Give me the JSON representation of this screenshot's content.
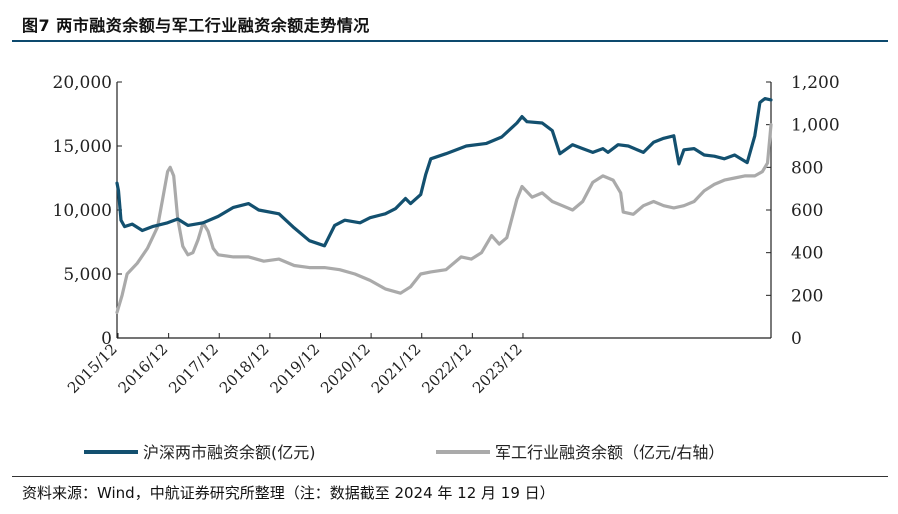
{
  "header": {
    "title": "图7  两市融资余额与军工行业融资余额走势情况"
  },
  "footer": {
    "source": "资料来源：Wind，中航证券研究所整理（注：数据截至 2024 年 12 月 19 日）"
  },
  "chart_data": {
    "type": "line",
    "title": "图7  两市融资余额与军工行业融资余额走势情况",
    "x_labels": [
      "2015/12",
      "2016/12",
      "2017/12",
      "2018/12",
      "2019/12",
      "2020/12",
      "2021/12",
      "2022/12",
      "2023/12"
    ],
    "y_left": {
      "ticks": [
        "0",
        "5,000",
        "10,000",
        "15,000",
        "20,000"
      ],
      "range": [
        0,
        20000
      ]
    },
    "y_right": {
      "ticks": [
        "0",
        "200",
        "400",
        "600",
        "800",
        "1,000",
        "1,200"
      ],
      "range": [
        0,
        1200
      ]
    },
    "colors": {
      "left_series": "#13506f",
      "right_series": "#aaaaaa"
    },
    "series": [
      {
        "name": "沪深两市融资余额(亿元)",
        "axis": "left",
        "points": [
          [
            0,
            12100
          ],
          [
            0.03,
            11500
          ],
          [
            0.08,
            9200
          ],
          [
            0.15,
            8700
          ],
          [
            0.3,
            8900
          ],
          [
            0.5,
            8400
          ],
          [
            0.7,
            8700
          ],
          [
            1.0,
            9000
          ],
          [
            1.2,
            9300
          ],
          [
            1.4,
            8800
          ],
          [
            1.7,
            9000
          ],
          [
            2.0,
            9500
          ],
          [
            2.3,
            10200
          ],
          [
            2.6,
            10500
          ],
          [
            2.8,
            10000
          ],
          [
            3.2,
            9700
          ],
          [
            3.5,
            8600
          ],
          [
            3.8,
            7600
          ],
          [
            4.1,
            7200
          ],
          [
            4.3,
            8800
          ],
          [
            4.5,
            9200
          ],
          [
            4.8,
            9000
          ],
          [
            5.0,
            9400
          ],
          [
            5.3,
            9700
          ],
          [
            5.5,
            10100
          ],
          [
            5.7,
            10900
          ],
          [
            5.8,
            10500
          ],
          [
            6.0,
            11200
          ],
          [
            6.1,
            12800
          ],
          [
            6.2,
            14000
          ],
          [
            6.5,
            14400
          ],
          [
            6.9,
            15000
          ],
          [
            7.3,
            15200
          ],
          [
            7.6,
            15700
          ],
          [
            7.9,
            16800
          ],
          [
            8.0,
            17300
          ],
          [
            8.1,
            16900
          ],
          [
            8.4,
            16800
          ],
          [
            8.6,
            16200
          ],
          [
            8.75,
            14400
          ],
          [
            9.0,
            15100
          ],
          [
            9.2,
            14800
          ],
          [
            9.4,
            14500
          ],
          [
            9.6,
            14800
          ],
          [
            9.7,
            14500
          ],
          [
            9.9,
            15100
          ],
          [
            10.1,
            15000
          ],
          [
            10.4,
            14500
          ],
          [
            10.6,
            15300
          ],
          [
            10.8,
            15600
          ],
          [
            11.0,
            15800
          ],
          [
            11.1,
            13600
          ],
          [
            11.2,
            14700
          ],
          [
            11.4,
            14800
          ],
          [
            11.6,
            14300
          ],
          [
            11.8,
            14200
          ],
          [
            12.0,
            14000
          ],
          [
            12.2,
            14300
          ],
          [
            12.45,
            13700
          ],
          [
            12.6,
            15800
          ],
          [
            12.7,
            18400
          ],
          [
            12.8,
            18700
          ],
          [
            12.92,
            18600
          ]
        ]
      },
      {
        "name": "军工行业融资余额（亿元/右轴）",
        "axis": "right",
        "points": [
          [
            0,
            120
          ],
          [
            0.1,
            200
          ],
          [
            0.2,
            300
          ],
          [
            0.4,
            350
          ],
          [
            0.6,
            420
          ],
          [
            0.8,
            520
          ],
          [
            0.9,
            650
          ],
          [
            1.0,
            780
          ],
          [
            1.05,
            800
          ],
          [
            1.12,
            760
          ],
          [
            1.2,
            560
          ],
          [
            1.3,
            430
          ],
          [
            1.4,
            390
          ],
          [
            1.5,
            400
          ],
          [
            1.6,
            460
          ],
          [
            1.7,
            540
          ],
          [
            1.8,
            500
          ],
          [
            1.9,
            420
          ],
          [
            2.0,
            390
          ],
          [
            2.3,
            380
          ],
          [
            2.6,
            380
          ],
          [
            2.9,
            360
          ],
          [
            3.2,
            370
          ],
          [
            3.5,
            340
          ],
          [
            3.8,
            330
          ],
          [
            4.1,
            330
          ],
          [
            4.4,
            320
          ],
          [
            4.7,
            300
          ],
          [
            5.0,
            270
          ],
          [
            5.3,
            230
          ],
          [
            5.6,
            210
          ],
          [
            5.8,
            240
          ],
          [
            6.0,
            300
          ],
          [
            6.2,
            310
          ],
          [
            6.5,
            320
          ],
          [
            6.8,
            380
          ],
          [
            7.0,
            370
          ],
          [
            7.2,
            400
          ],
          [
            7.4,
            480
          ],
          [
            7.55,
            440
          ],
          [
            7.7,
            470
          ],
          [
            7.9,
            650
          ],
          [
            8.0,
            710
          ],
          [
            8.2,
            660
          ],
          [
            8.4,
            680
          ],
          [
            8.6,
            640
          ],
          [
            8.8,
            620
          ],
          [
            9.0,
            600
          ],
          [
            9.2,
            640
          ],
          [
            9.4,
            730
          ],
          [
            9.6,
            760
          ],
          [
            9.8,
            740
          ],
          [
            9.95,
            680
          ],
          [
            10.0,
            590
          ],
          [
            10.2,
            580
          ],
          [
            10.4,
            620
          ],
          [
            10.6,
            640
          ],
          [
            10.8,
            620
          ],
          [
            11.0,
            610
          ],
          [
            11.2,
            620
          ],
          [
            11.4,
            640
          ],
          [
            11.6,
            690
          ],
          [
            11.8,
            720
          ],
          [
            12.0,
            740
          ],
          [
            12.2,
            750
          ],
          [
            12.4,
            760
          ],
          [
            12.6,
            760
          ],
          [
            12.75,
            780
          ],
          [
            12.85,
            820
          ],
          [
            12.92,
            1000
          ]
        ]
      }
    ],
    "legend": [
      {
        "label": "沪深两市融资余额(亿元)",
        "color": "#13506f"
      },
      {
        "label": "军工行业融资余额（亿元/右轴）",
        "color": "#aaaaaa"
      }
    ]
  }
}
